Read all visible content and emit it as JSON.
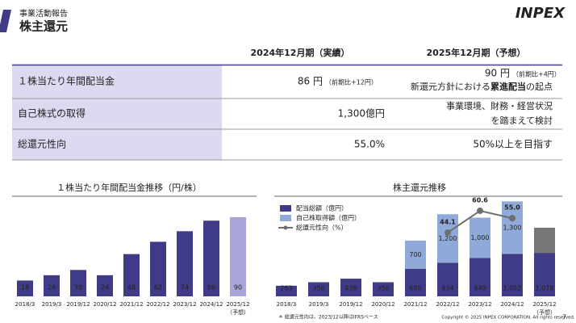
{
  "header": {
    "category": "事業活動報告",
    "title": "株主還元",
    "logo": "INPEX"
  },
  "table": {
    "columns": [
      "2024年12月期（実績）",
      "2025年12月期（予想）"
    ],
    "rows": [
      {
        "label": "１株当たり年間配当金",
        "actual": "86 円",
        "actual_note": "（前期比+12円）",
        "forecast": "90 円",
        "forecast_note": "（前期比+4円）",
        "forecast_line2_pre": "新還元方針における",
        "forecast_line2_bold": "累進配当",
        "forecast_line2_post": "の起点"
      },
      {
        "label": "自己株式の取得",
        "actual": "1,300億円",
        "forecast": "事業環境、財務・経営状況",
        "forecast_line2": "を踏まえて検討"
      },
      {
        "label": "総還元性向",
        "actual": "55.0%",
        "forecast": "50%以上を目指す"
      }
    ]
  },
  "chart_data": [
    {
      "type": "bar",
      "title": "１株当たり年間配当金推移（円/株）",
      "categories": [
        "2018/3",
        "2019/3",
        "2019/12",
        "2020/12",
        "2021/12",
        "2022/12",
        "2023/12",
        "2024/12",
        "2025/12"
      ],
      "forecast_note": "（予想）",
      "values": [
        18,
        24,
        30,
        24,
        48,
        62,
        74,
        86,
        90
      ],
      "color": "#3f3b87",
      "forecast_color": "#aaa5d9"
    },
    {
      "type": "stacked_bar",
      "title": "株主還元推移",
      "categories": [
        "2018/3",
        "2019/3",
        "2019/12",
        "2020/12",
        "2021/12",
        "2022/12",
        "2023/12",
        "2024/12",
        "2025/12"
      ],
      "forecast_note": "（予想）",
      "series": [
        {
          "name": "配当総額（億円）",
          "color": "#3f3b87",
          "values": [
            263,
            350,
            438,
            350,
            680,
            834,
            949,
            1052,
            1078
          ],
          "value_labels": [
            "263",
            "350",
            "438",
            "350",
            "680",
            "834",
            "949",
            "1,052",
            "1,078"
          ]
        },
        {
          "name": "自己株取得額（億円）",
          "color": "#8fa9d8",
          "values": [
            null,
            null,
            null,
            null,
            700,
            1200,
            1000,
            1300,
            null
          ],
          "value_labels": [
            null,
            null,
            null,
            null,
            "700",
            "1,200",
            "1,000",
            "1,300",
            null
          ]
        },
        {
          "name": "総還元性向（%）",
          "color": "#6e6e6e",
          "type": "line",
          "axis": "y2",
          "values": [
            null,
            null,
            null,
            null,
            null,
            44.1,
            60.6,
            55.0,
            null
          ],
          "value_labels": [
            null,
            null,
            null,
            null,
            null,
            "44.1",
            "60.6",
            "55.0",
            null
          ]
        }
      ]
    }
  ],
  "footer": {
    "note": "＊ 総還元性向は、2023/12以降はIFRSベース",
    "copyright": "Copyright © 2025 INPEX CORPORATION. All rights reserved.",
    "page": "7"
  }
}
